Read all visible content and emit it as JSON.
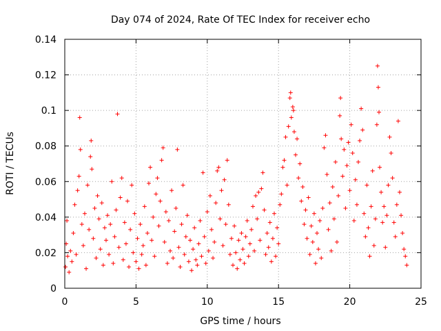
{
  "chart_data": {
    "type": "scatter",
    "title": "Day 074 of 2024, Rate Of TEC Index for receiver echo",
    "xlabel": "GPS time / hours",
    "ylabel": "ROTI / TECUs",
    "xlim": [
      0,
      25
    ],
    "ylim": [
      0,
      0.14
    ],
    "xticks": [
      0,
      5,
      10,
      15,
      20,
      25
    ],
    "xtick_labels": [
      "0",
      "5",
      "10",
      "15",
      "20",
      "25"
    ],
    "yticks": [
      0,
      0.02,
      0.04,
      0.06,
      0.08,
      0.1,
      0.12,
      0.14
    ],
    "ytick_labels": [
      "0",
      "0.02",
      "0.04",
      "0.06",
      "0.08",
      "0.1",
      "0.12",
      "0.14"
    ],
    "grid": true,
    "marker": "+",
    "color": "#ff0000",
    "series": [
      {
        "points": [
          [
            0.05,
            0.012
          ],
          [
            0.1,
            0.025
          ],
          [
            0.15,
            0.038
          ],
          [
            0.2,
            0.018
          ],
          [
            0.3,
            0.009
          ],
          [
            0.4,
            0.021
          ],
          [
            0.5,
            0.015
          ],
          [
            0.6,
            0.031
          ],
          [
            0.7,
            0.047
          ],
          [
            0.8,
            0.019
          ],
          [
            0.9,
            0.055
          ],
          [
            1.0,
            0.063
          ],
          [
            1.05,
            0.096
          ],
          [
            1.1,
            0.078
          ],
          [
            1.2,
            0.036
          ],
          [
            1.3,
            0.024
          ],
          [
            1.4,
            0.042
          ],
          [
            1.5,
            0.011
          ],
          [
            1.6,
            0.058
          ],
          [
            1.7,
            0.033
          ],
          [
            1.8,
            0.074
          ],
          [
            1.85,
            0.083
          ],
          [
            1.9,
            0.067
          ],
          [
            2.0,
            0.028
          ],
          [
            2.1,
            0.045
          ],
          [
            2.2,
            0.017
          ],
          [
            2.3,
            0.052
          ],
          [
            2.4,
            0.039
          ],
          [
            2.5,
            0.022
          ],
          [
            2.6,
            0.048
          ],
          [
            2.7,
            0.013
          ],
          [
            2.8,
            0.034
          ],
          [
            2.9,
            0.027
          ],
          [
            3.0,
            0.041
          ],
          [
            3.1,
            0.019
          ],
          [
            3.2,
            0.036
          ],
          [
            3.3,
            0.06
          ],
          [
            3.4,
            0.014
          ],
          [
            3.5,
            0.029
          ],
          [
            3.6,
            0.044
          ],
          [
            3.7,
            0.098
          ],
          [
            3.8,
            0.023
          ],
          [
            3.9,
            0.051
          ],
          [
            4.0,
            0.062
          ],
          [
            4.1,
            0.016
          ],
          [
            4.2,
            0.037
          ],
          [
            4.3,
            0.025
          ],
          [
            4.4,
            0.049
          ],
          [
            4.5,
            0.012
          ],
          [
            4.6,
            0.033
          ],
          [
            4.7,
            0.058
          ],
          [
            4.8,
            0.02
          ],
          [
            4.9,
            0.042
          ],
          [
            5.0,
            0.015
          ],
          [
            5.1,
            0.028
          ],
          [
            5.2,
            0.011
          ],
          [
            5.3,
            0.036
          ],
          [
            5.4,
            0.019
          ],
          [
            5.5,
            0.024
          ],
          [
            5.6,
            0.046
          ],
          [
            5.7,
            0.013
          ],
          [
            5.8,
            0.031
          ],
          [
            5.9,
            0.059
          ],
          [
            6.0,
            0.068
          ],
          [
            6.1,
            0.027
          ],
          [
            6.2,
            0.04
          ],
          [
            6.3,
            0.018
          ],
          [
            6.4,
            0.053
          ],
          [
            6.5,
            0.062
          ],
          [
            6.6,
            0.035
          ],
          [
            6.7,
            0.049
          ],
          [
            6.8,
            0.072
          ],
          [
            6.9,
            0.079
          ],
          [
            7.0,
            0.026
          ],
          [
            7.1,
            0.043
          ],
          [
            7.2,
            0.014
          ],
          [
            7.3,
            0.038
          ],
          [
            7.4,
            0.021
          ],
          [
            7.5,
            0.055
          ],
          [
            7.6,
            0.017
          ],
          [
            7.7,
            0.032
          ],
          [
            7.8,
            0.045
          ],
          [
            7.9,
            0.078
          ],
          [
            8.0,
            0.023
          ],
          [
            8.1,
            0.012
          ],
          [
            8.2,
            0.036
          ],
          [
            8.3,
            0.058
          ],
          [
            8.4,
            0.019
          ],
          [
            8.5,
            0.029
          ],
          [
            8.6,
            0.041
          ],
          [
            8.7,
            0.015
          ],
          [
            8.8,
            0.027
          ],
          [
            8.9,
            0.01
          ],
          [
            9.0,
            0.022
          ],
          [
            9.1,
            0.034
          ],
          [
            9.2,
            0.016
          ],
          [
            9.3,
            0.013
          ],
          [
            9.4,
            0.025
          ],
          [
            9.5,
            0.038
          ],
          [
            9.6,
            0.018
          ],
          [
            9.7,
            0.065
          ],
          [
            9.8,
            0.029
          ],
          [
            9.9,
            0.014
          ],
          [
            10.0,
            0.043
          ],
          [
            10.1,
            0.021
          ],
          [
            10.2,
            0.052
          ],
          [
            10.3,
            0.033
          ],
          [
            10.4,
            0.017
          ],
          [
            10.5,
            0.026
          ],
          [
            10.6,
            0.048
          ],
          [
            10.7,
            0.066
          ],
          [
            10.8,
            0.068
          ],
          [
            10.9,
            0.039
          ],
          [
            11.0,
            0.055
          ],
          [
            11.1,
            0.024
          ],
          [
            11.2,
            0.061
          ],
          [
            11.3,
            0.036
          ],
          [
            11.4,
            0.072
          ],
          [
            11.5,
            0.047
          ],
          [
            11.6,
            0.019
          ],
          [
            11.7,
            0.028
          ],
          [
            11.8,
            0.013
          ],
          [
            11.9,
            0.035
          ],
          [
            12.0,
            0.02
          ],
          [
            12.1,
            0.011
          ],
          [
            12.2,
            0.027
          ],
          [
            12.3,
            0.016
          ],
          [
            12.4,
            0.031
          ],
          [
            12.5,
            0.022
          ],
          [
            12.6,
            0.014
          ],
          [
            12.7,
            0.029
          ],
          [
            12.8,
            0.038
          ],
          [
            12.9,
            0.018
          ],
          [
            13.0,
            0.025
          ],
          [
            13.1,
            0.033
          ],
          [
            13.2,
            0.046
          ],
          [
            13.3,
            0.021
          ],
          [
            13.4,
            0.052
          ],
          [
            13.5,
            0.039
          ],
          [
            13.6,
            0.054
          ],
          [
            13.7,
            0.027
          ],
          [
            13.8,
            0.056
          ],
          [
            13.9,
            0.065
          ],
          [
            14.0,
            0.044
          ],
          [
            14.1,
            0.019
          ],
          [
            14.2,
            0.031
          ],
          [
            14.3,
            0.023
          ],
          [
            14.4,
            0.037
          ],
          [
            14.5,
            0.015
          ],
          [
            14.6,
            0.028
          ],
          [
            14.7,
            0.042
          ],
          [
            14.8,
            0.018
          ],
          [
            14.9,
            0.034
          ],
          [
            15.0,
            0.025
          ],
          [
            15.1,
            0.047
          ],
          [
            15.2,
            0.053
          ],
          [
            15.3,
            0.068
          ],
          [
            15.4,
            0.072
          ],
          [
            15.5,
            0.085
          ],
          [
            15.6,
            0.058
          ],
          [
            15.7,
            0.091
          ],
          [
            15.8,
            0.107
          ],
          [
            15.85,
            0.11
          ],
          [
            15.9,
            0.096
          ],
          [
            16.0,
            0.102
          ],
          [
            16.05,
            0.1
          ],
          [
            16.1,
            0.088
          ],
          [
            16.2,
            0.075
          ],
          [
            16.3,
            0.084
          ],
          [
            16.4,
            0.062
          ],
          [
            16.5,
            0.07
          ],
          [
            16.6,
            0.049
          ],
          [
            16.7,
            0.057
          ],
          [
            16.8,
            0.036
          ],
          [
            16.9,
            0.044
          ],
          [
            17.0,
            0.028
          ],
          [
            17.1,
            0.051
          ],
          [
            17.2,
            0.019
          ],
          [
            17.3,
            0.035
          ],
          [
            17.4,
            0.026
          ],
          [
            17.5,
            0.042
          ],
          [
            17.6,
            0.014
          ],
          [
            17.7,
            0.031
          ],
          [
            17.8,
            0.022
          ],
          [
            17.9,
            0.038
          ],
          [
            18.0,
            0.017
          ],
          [
            18.1,
            0.045
          ],
          [
            18.2,
            0.079
          ],
          [
            18.3,
            0.086
          ],
          [
            18.4,
            0.064
          ],
          [
            18.5,
            0.033
          ],
          [
            18.6,
            0.048
          ],
          [
            18.7,
            0.021
          ],
          [
            18.8,
            0.057
          ],
          [
            18.9,
            0.039
          ],
          [
            19.0,
            0.071
          ],
          [
            19.1,
            0.026
          ],
          [
            19.2,
            0.052
          ],
          [
            19.3,
            0.097
          ],
          [
            19.35,
            0.107
          ],
          [
            19.4,
            0.084
          ],
          [
            19.5,
            0.063
          ],
          [
            19.6,
            0.078
          ],
          [
            19.7,
            0.045
          ],
          [
            19.8,
            0.069
          ],
          [
            19.9,
            0.082
          ],
          [
            20.0,
            0.055
          ],
          [
            20.1,
            0.092
          ],
          [
            20.2,
            0.076
          ],
          [
            20.3,
            0.038
          ],
          [
            20.4,
            0.061
          ],
          [
            20.5,
            0.047
          ],
          [
            20.6,
            0.071
          ],
          [
            20.7,
            0.083
          ],
          [
            20.8,
            0.101
          ],
          [
            20.9,
            0.089
          ],
          [
            21.0,
            0.042
          ],
          [
            21.1,
            0.029
          ],
          [
            21.2,
            0.058
          ],
          [
            21.3,
            0.034
          ],
          [
            21.4,
            0.018
          ],
          [
            21.5,
            0.046
          ],
          [
            21.6,
            0.066
          ],
          [
            21.7,
            0.024
          ],
          [
            21.8,
            0.039
          ],
          [
            21.9,
            0.092
          ],
          [
            21.95,
            0.125
          ],
          [
            22.0,
            0.113
          ],
          [
            22.05,
            0.099
          ],
          [
            22.1,
            0.068
          ],
          [
            22.2,
            0.054
          ],
          [
            22.3,
            0.037
          ],
          [
            22.4,
            0.046
          ],
          [
            22.5,
            0.023
          ],
          [
            22.6,
            0.041
          ],
          [
            22.7,
            0.058
          ],
          [
            22.8,
            0.085
          ],
          [
            22.9,
            0.076
          ],
          [
            23.0,
            0.062
          ],
          [
            23.1,
            0.037
          ],
          [
            23.2,
            0.029
          ],
          [
            23.3,
            0.047
          ],
          [
            23.4,
            0.094
          ],
          [
            23.5,
            0.054
          ],
          [
            23.6,
            0.041
          ],
          [
            23.7,
            0.031
          ],
          [
            23.8,
            0.022
          ],
          [
            23.9,
            0.018
          ],
          [
            24.0,
            0.013
          ]
        ]
      }
    ]
  }
}
